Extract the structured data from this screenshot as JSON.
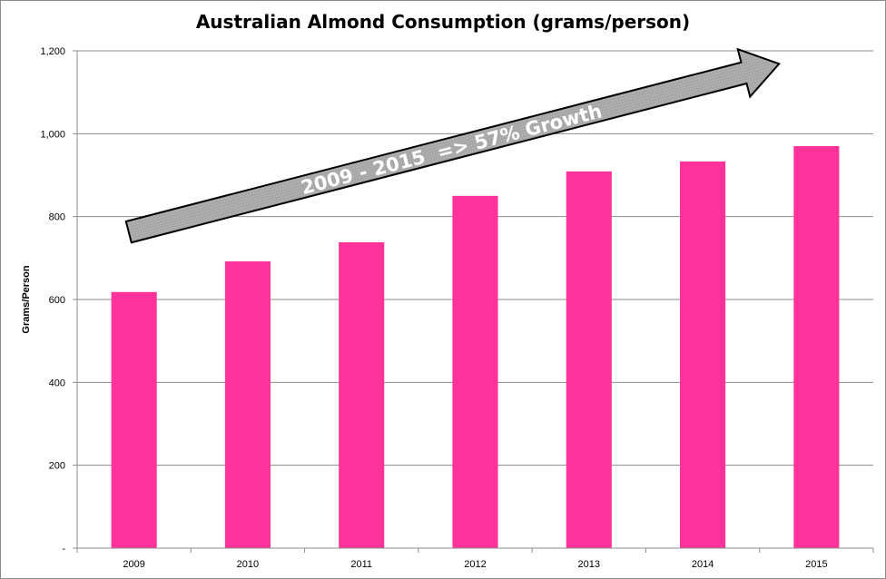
{
  "chart_data": {
    "type": "bar",
    "title": "Australian Almond Consumption (grams/person)",
    "xlabel": "",
    "ylabel": "Grams/Person",
    "categories": [
      "2009",
      "2010",
      "2011",
      "2012",
      "2013",
      "2014",
      "2015"
    ],
    "values": [
      618,
      692,
      738,
      850,
      909,
      933,
      970
    ],
    "ylim": [
      0,
      1200
    ],
    "yticks": [
      0,
      200,
      400,
      600,
      800,
      1000,
      1200
    ],
    "ytick_labels": [
      "-",
      "200",
      "400",
      "600",
      "800",
      "1,000",
      "1,200"
    ],
    "grid": true,
    "bar_color": "#ff3399",
    "annotation": "2009 - 2015  => 57% Growth"
  }
}
